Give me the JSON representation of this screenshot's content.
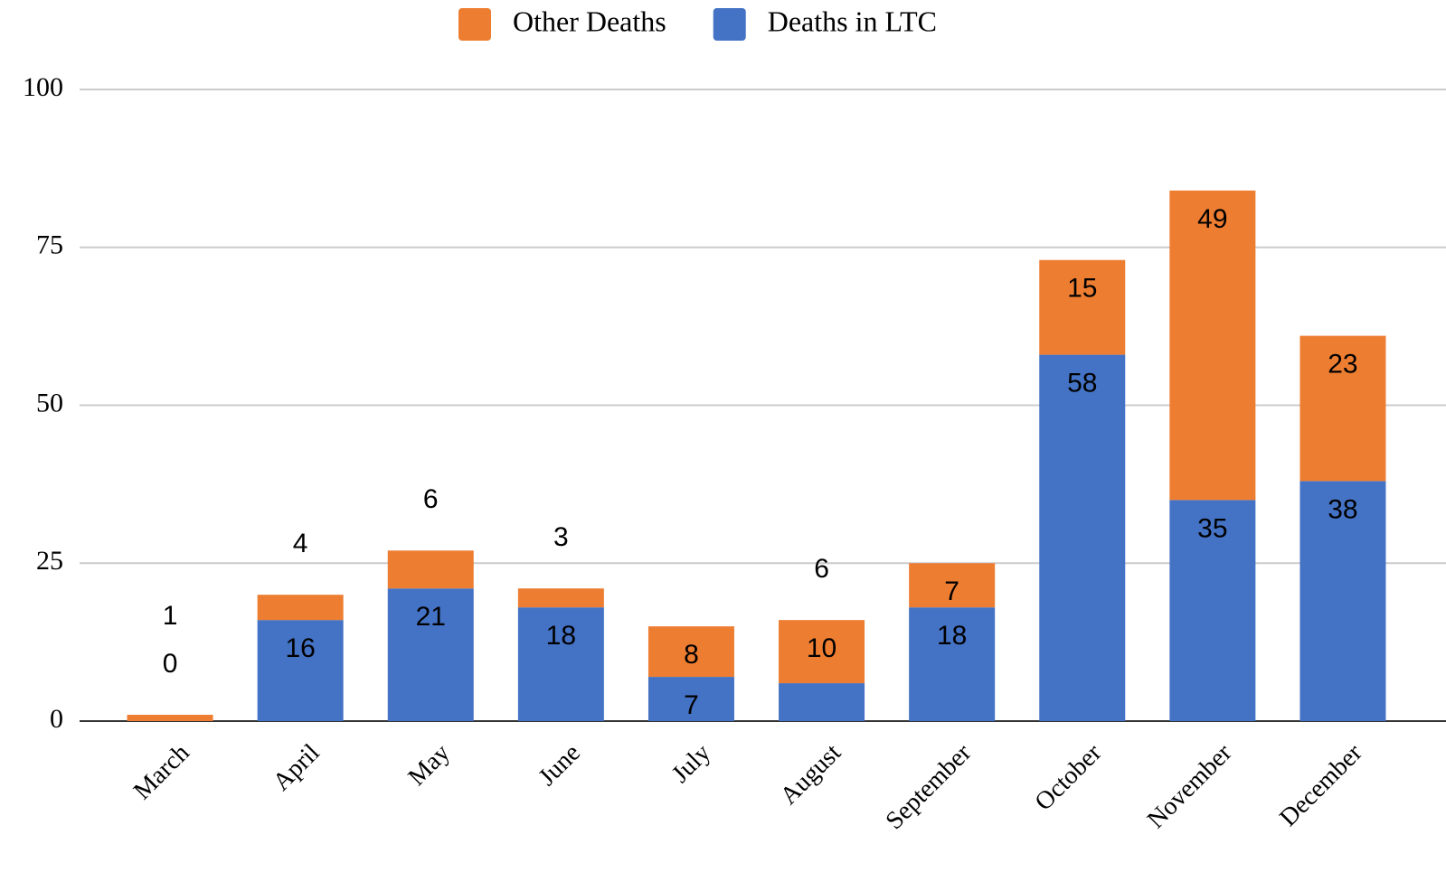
{
  "chart_data": {
    "type": "stacked_bar",
    "categories": [
      "March",
      "April",
      "May",
      "June",
      "July",
      "August",
      "September",
      "October",
      "November",
      "December"
    ],
    "series": [
      {
        "name": "Deaths in LTC",
        "color": "#4472c4",
        "values": [
          0,
          16,
          21,
          18,
          7,
          6,
          18,
          58,
          35,
          38
        ]
      },
      {
        "name": "Other Deaths",
        "color": "#ed7d31",
        "values": [
          1,
          4,
          6,
          3,
          8,
          10,
          7,
          15,
          49,
          23
        ]
      }
    ],
    "ylim": [
      0,
      100
    ],
    "yticks": [
      0,
      25,
      50,
      75,
      100
    ],
    "grid": true,
    "legend": "top"
  }
}
